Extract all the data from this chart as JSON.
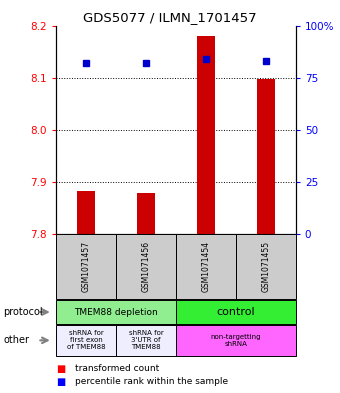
{
  "title": "GDS5077 / ILMN_1701457",
  "samples": [
    "GSM1071457",
    "GSM1071456",
    "GSM1071454",
    "GSM1071455"
  ],
  "red_bottoms": [
    7.8,
    7.8,
    7.8,
    7.8
  ],
  "red_tops": [
    7.883,
    7.878,
    8.18,
    8.098
  ],
  "blue_pcts": [
    82,
    82,
    84,
    83
  ],
  "ylim_left": [
    7.8,
    8.2
  ],
  "ylim_right": [
    0,
    100
  ],
  "yticks_left": [
    7.8,
    7.9,
    8.0,
    8.1,
    8.2
  ],
  "yticks_right": [
    0,
    25,
    50,
    75,
    100
  ],
  "ytick_labels_right": [
    "0",
    "25",
    "50",
    "75",
    "100%"
  ],
  "gridlines": [
    7.9,
    8.0,
    8.1
  ],
  "protocol_labels": [
    "TMEM88 depletion",
    "control"
  ],
  "protocol_colors": [
    "#90EE90",
    "#33EE33"
  ],
  "other_labels": [
    "shRNA for\nfirst exon\nof TMEM88",
    "shRNA for\n3'UTR of\nTMEM88",
    "non-targetting\nshRNA"
  ],
  "other_colors": [
    "#EEEEFF",
    "#EEEEFF",
    "#FF66FF"
  ],
  "legend_red": "transformed count",
  "legend_blue": "percentile rank within the sample",
  "bar_color": "#CC0000",
  "dot_color": "#0000CC",
  "label_area_color": "#CCCCCC"
}
